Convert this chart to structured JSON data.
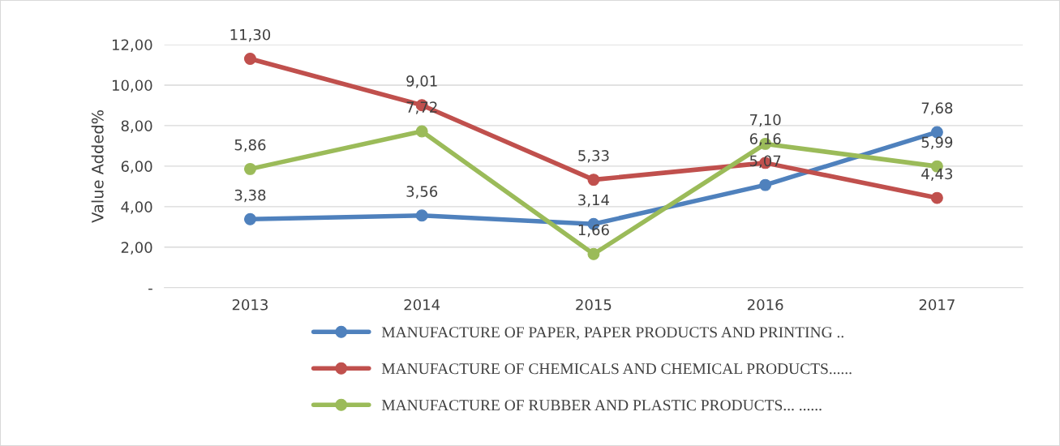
{
  "chart_data": {
    "type": "line",
    "ylabel": "Value Added%",
    "categories": [
      "2013",
      "2014",
      "2015",
      "2016",
      "2017"
    ],
    "series": [
      {
        "name": "MANUFACTURE OF PAPER, PAPER PRODUCTS AND PRINTING ..",
        "color": "#4f81bd",
        "values": [
          3.38,
          3.56,
          3.14,
          5.07,
          7.68
        ],
        "value_labels": [
          "3,38",
          "3,56",
          "3,14",
          "5,07",
          "7,68"
        ]
      },
      {
        "name": "MANUFACTURE OF CHEMICALS AND CHEMICAL PRODUCTS......",
        "color": "#c0504d",
        "values": [
          11.3,
          9.01,
          5.33,
          6.16,
          4.43
        ],
        "value_labels": [
          "11,30",
          "9,01",
          "5,33",
          "6,16",
          "4,43"
        ]
      },
      {
        "name": "MANUFACTURE OF RUBBER AND PLASTIC PRODUCTS... ......",
        "color": "#9bbb59",
        "values": [
          5.86,
          7.72,
          1.66,
          7.1,
          5.99
        ],
        "value_labels": [
          "5,86",
          "7,72",
          "1,66",
          "7,10",
          "5,99"
        ]
      }
    ],
    "ylim": [
      0,
      12
    ],
    "yticks": [
      {
        "value": 0,
        "label": "-"
      },
      {
        "value": 2,
        "label": "2,00"
      },
      {
        "value": 4,
        "label": "4,00"
      },
      {
        "value": 6,
        "label": "6,00"
      },
      {
        "value": 8,
        "label": "8,00"
      },
      {
        "value": 10,
        "label": "10,00"
      },
      {
        "value": 12,
        "label": "12,00"
      }
    ],
    "grid": "y",
    "legend": "bottom",
    "marker": "circle",
    "line_style": "solid"
  }
}
